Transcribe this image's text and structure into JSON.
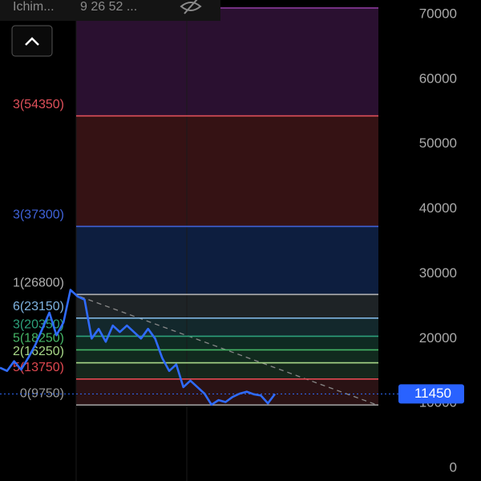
{
  "chart_data": {
    "type": "line",
    "indicator": "Ichim...",
    "indicator_params": "9 26 52 ...",
    "ylim": [
      0,
      70000
    ],
    "yticks": [
      0,
      10000,
      20000,
      30000,
      40000,
      50000,
      60000,
      70000
    ],
    "series": [
      {
        "color": "#2f6bff",
        "values": [
          15500,
          15000,
          16500,
          15200,
          17000,
          19000,
          21500,
          24000,
          20500,
          22500,
          27500,
          26500,
          26000,
          20000,
          21500,
          19500,
          22000,
          21000,
          22000,
          21000,
          20000,
          21500,
          20000,
          17000,
          15000,
          16000,
          12500,
          13500,
          12500,
          11500,
          9800,
          10500,
          10200,
          11000,
          11500,
          11800,
          11400,
          11200,
          10000,
          11450
        ]
      }
    ],
    "last_price": 11450,
    "fib_levels": [
      {
        "label": "0(9750)",
        "value": 9750,
        "color": "#9a9a9a",
        "fill": "#2a1214"
      },
      {
        "label": "5(13750)",
        "value": 13750,
        "color": "#e04850",
        "fill": "#15271c"
      },
      {
        "label": "2(16250)",
        "value": 16250,
        "color": "#a8d888",
        "fill": "#112a1e"
      },
      {
        "label": "5(18250)",
        "value": 18250,
        "color": "#45b566",
        "fill": "#0f2a22"
      },
      {
        "label": "3(20350)",
        "value": 20350,
        "color": "#2da07a",
        "fill": "#13282c"
      },
      {
        "label": "6(23150)",
        "value": 23150,
        "color": "#7fb3e0",
        "fill": "#1e2326"
      },
      {
        "label": "1(26800)",
        "value": 26800,
        "color": "#b0b0b0",
        "fill": "#0d1e3f"
      },
      {
        "label": "3(37300)",
        "value": 37300,
        "color": "#3f62d8",
        "fill": "#351214"
      },
      {
        "label": "3(54350)",
        "value": 54350,
        "color": "#e0505a",
        "fill": "#2a1030"
      },
      {
        "value": 71000,
        "color": "#8a3a9a"
      }
    ]
  }
}
